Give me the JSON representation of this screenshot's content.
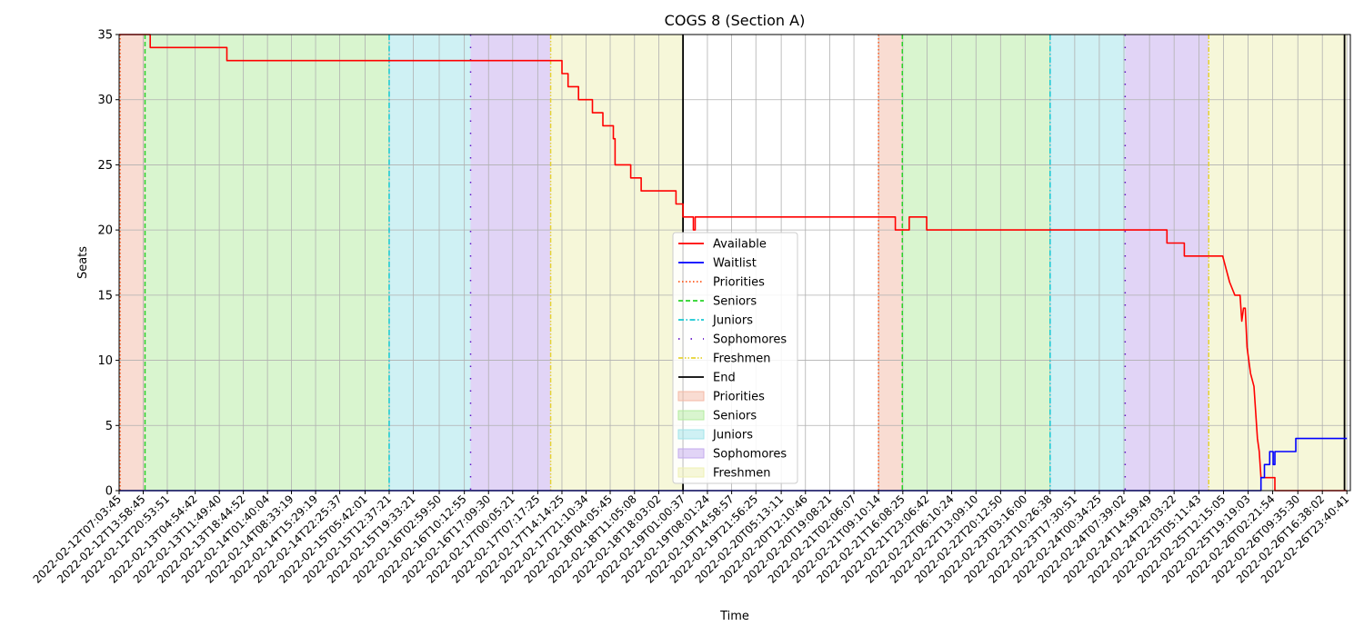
{
  "chart_data": {
    "type": "line",
    "title": "COGS 8 (Section A)",
    "xlabel": "Time",
    "ylabel": "Seats",
    "ylim": [
      0,
      35
    ],
    "yticks": [
      0,
      5,
      10,
      15,
      20,
      25,
      30,
      35
    ],
    "xlim": [
      "2022-02-12T07:03:45",
      "2022-02-27T00:40:41"
    ],
    "grid": true,
    "legend_position": "lower center",
    "xticks": [
      "2022-02-12T07:03:45",
      "2022-02-12T13:58:45",
      "2022-02-12T20:53:51",
      "2022-02-13T04:54:42",
      "2022-02-13T11:49:40",
      "2022-02-13T18:44:52",
      "2022-02-14T01:40:04",
      "2022-02-14T08:33:19",
      "2022-02-14T15:29:19",
      "2022-02-14T22:25:37",
      "2022-02-15T05:42:01",
      "2022-02-15T12:37:21",
      "2022-02-15T19:33:21",
      "2022-02-16T02:59:50",
      "2022-02-16T10:12:55",
      "2022-02-16T17:09:30",
      "2022-02-17T00:05:21",
      "2022-02-17T07:17:25",
      "2022-02-17T14:14:25",
      "2022-02-17T21:10:34",
      "2022-02-18T04:05:45",
      "2022-02-18T11:05:08",
      "2022-02-18T18:03:02",
      "2022-02-19T01:00:37",
      "2022-02-19T08:01:24",
      "2022-02-19T14:58:57",
      "2022-02-19T21:56:25",
      "2022-02-20T05:13:11",
      "2022-02-20T12:10:46",
      "2022-02-20T19:08:21",
      "2022-02-21T02:06:07",
      "2022-02-21T09:10:14",
      "2022-02-21T16:08:25",
      "2022-02-21T23:06:42",
      "2022-02-22T06:10:24",
      "2022-02-22T13:09:10",
      "2022-02-22T20:12:50",
      "2022-02-23T03:16:00",
      "2022-02-23T10:26:38",
      "2022-02-23T17:30:51",
      "2022-02-24T00:34:25",
      "2022-02-24T07:39:02",
      "2022-02-24T14:59:49",
      "2022-02-24T22:03:22",
      "2022-02-25T05:11:43",
      "2022-02-25T12:15:05",
      "2022-02-25T19:19:03",
      "2022-02-26T02:21:54",
      "2022-02-26T09:35:30",
      "2022-02-26T16:38:02",
      "2022-02-26T23:40:41"
    ],
    "periods": [
      {
        "name": "Priorities",
        "color": "#f4b9a6",
        "intervals": [
          [
            "2022-02-12T07:03:45",
            "2022-02-12T14:30:00"
          ],
          [
            "2022-02-21T09:10:14",
            "2022-02-21T16:00:00"
          ]
        ]
      },
      {
        "name": "Seniors",
        "color": "#b3ec9f",
        "intervals": [
          [
            "2022-02-12T14:30:00",
            "2022-02-15T12:37:21"
          ],
          [
            "2022-02-21T16:00:00",
            "2022-02-23T10:26:38"
          ]
        ]
      },
      {
        "name": "Juniors",
        "color": "#a0e4ea",
        "intervals": [
          [
            "2022-02-15T12:37:21",
            "2022-02-16T12:00:00"
          ],
          [
            "2022-02-23T10:26:38",
            "2022-02-24T08:00:00"
          ]
        ]
      },
      {
        "name": "Sophomores",
        "color": "#c3aaed",
        "intervals": [
          [
            "2022-02-16T12:00:00",
            "2022-02-17T11:00:00"
          ],
          [
            "2022-02-24T08:00:00",
            "2022-02-25T08:00:00"
          ]
        ]
      },
      {
        "name": "Freshmen",
        "color": "#eef0b3",
        "intervals": [
          [
            "2022-02-17T11:00:00",
            "2022-02-19T01:00:37"
          ],
          [
            "2022-02-25T08:00:00",
            "2022-02-26T23:40:41"
          ]
        ]
      }
    ],
    "markers": [
      {
        "name": "Priorities",
        "color": "#ff5a1e",
        "style": "dotted",
        "times": [
          "2022-02-12T07:20:00",
          "2022-02-21T09:10:14"
        ]
      },
      {
        "name": "Seniors",
        "color": "#28d228",
        "style": "dashed",
        "times": [
          "2022-02-12T14:30:00",
          "2022-02-21T16:00:00"
        ]
      },
      {
        "name": "Juniors",
        "color": "#14c8d2",
        "style": "dashdot",
        "times": [
          "2022-02-15T12:37:21",
          "2022-02-23T10:26:38"
        ]
      },
      {
        "name": "Sophomores",
        "color": "#6414c8",
        "style": "loosedashdot",
        "times": [
          "2022-02-16T12:00:00",
          "2022-02-24T08:00:00"
        ]
      },
      {
        "name": "Freshmen",
        "color": "#e6d232",
        "style": "dashdotdot",
        "times": [
          "2022-02-17T11:00:00",
          "2022-02-25T08:00:00"
        ]
      },
      {
        "name": "End",
        "color": "#000000",
        "style": "solid",
        "times": [
          "2022-02-19T01:00:37",
          "2022-02-26T23:00:00"
        ]
      }
    ],
    "series": [
      {
        "name": "Available",
        "color": "#ff0000",
        "points": [
          [
            "2022-02-12T07:03:45",
            35
          ],
          [
            "2022-02-12T16:00:00",
            35
          ],
          [
            "2022-02-12T16:00:00",
            34
          ],
          [
            "2022-02-13T14:00:00",
            34
          ],
          [
            "2022-02-13T14:00:00",
            33
          ],
          [
            "2022-02-17T14:14:25",
            33
          ],
          [
            "2022-02-17T14:14:25",
            32
          ],
          [
            "2022-02-17T16:00:00",
            32
          ],
          [
            "2022-02-17T16:00:00",
            31
          ],
          [
            "2022-02-17T19:00:00",
            31
          ],
          [
            "2022-02-17T19:00:00",
            30
          ],
          [
            "2022-02-17T23:00:00",
            30
          ],
          [
            "2022-02-17T23:00:00",
            29
          ],
          [
            "2022-02-18T02:00:00",
            29
          ],
          [
            "2022-02-18T02:00:00",
            28
          ],
          [
            "2022-02-18T05:00:00",
            28
          ],
          [
            "2022-02-18T05:00:00",
            27
          ],
          [
            "2022-02-18T05:30:00",
            27
          ],
          [
            "2022-02-18T05:30:00",
            25
          ],
          [
            "2022-02-18T10:00:00",
            25
          ],
          [
            "2022-02-18T10:00:00",
            24
          ],
          [
            "2022-02-18T13:00:00",
            24
          ],
          [
            "2022-02-18T13:00:00",
            23
          ],
          [
            "2022-02-18T23:00:00",
            23
          ],
          [
            "2022-02-18T23:00:00",
            22
          ],
          [
            "2022-02-19T01:00:00",
            22
          ],
          [
            "2022-02-19T01:00:00",
            21
          ],
          [
            "2022-02-19T04:00:00",
            21
          ],
          [
            "2022-02-19T04:00:00",
            20
          ],
          [
            "2022-02-19T04:30:00",
            20
          ],
          [
            "2022-02-19T04:30:00",
            21
          ],
          [
            "2022-02-21T14:00:00",
            21
          ],
          [
            "2022-02-21T14:00:00",
            20
          ],
          [
            "2022-02-21T18:00:00",
            20
          ],
          [
            "2022-02-21T18:00:00",
            21
          ],
          [
            "2022-02-21T23:00:00",
            21
          ],
          [
            "2022-02-21T23:00:00",
            20
          ],
          [
            "2022-02-24T20:00:00",
            20
          ],
          [
            "2022-02-24T20:00:00",
            19
          ],
          [
            "2022-02-25T01:00:00",
            19
          ],
          [
            "2022-02-25T01:00:00",
            18
          ],
          [
            "2022-02-25T12:00:00",
            18
          ],
          [
            "2022-02-25T13:00:00",
            17
          ],
          [
            "2022-02-25T14:00:00",
            16
          ],
          [
            "2022-02-25T15:30:00",
            15
          ],
          [
            "2022-02-25T17:00:00",
            15
          ],
          [
            "2022-02-25T17:30:00",
            13
          ],
          [
            "2022-02-25T18:00:00",
            14
          ],
          [
            "2022-02-25T18:30:00",
            14
          ],
          [
            "2022-02-25T19:00:00",
            11
          ],
          [
            "2022-02-25T19:30:00",
            10
          ],
          [
            "2022-02-25T20:00:00",
            9
          ],
          [
            "2022-02-25T21:00:00",
            8
          ],
          [
            "2022-02-25T21:30:00",
            6
          ],
          [
            "2022-02-25T22:00:00",
            4
          ],
          [
            "2022-02-25T22:30:00",
            3
          ],
          [
            "2022-02-25T23:00:00",
            1
          ],
          [
            "2022-02-26T03:00:00",
            1
          ],
          [
            "2022-02-26T03:00:00",
            0
          ],
          [
            "2022-02-26T23:40:41",
            0
          ]
        ]
      },
      {
        "name": "Waitlist",
        "color": "#0000ff",
        "points": [
          [
            "2022-02-12T07:03:45",
            0
          ],
          [
            "2022-02-25T23:00:00",
            0
          ],
          [
            "2022-02-25T23:00:00",
            1
          ],
          [
            "2022-02-26T00:00:00",
            1
          ],
          [
            "2022-02-26T00:00:00",
            2
          ],
          [
            "2022-02-26T01:30:00",
            2
          ],
          [
            "2022-02-26T01:30:00",
            3
          ],
          [
            "2022-02-26T02:30:00",
            3
          ],
          [
            "2022-02-26T02:30:00",
            2
          ],
          [
            "2022-02-26T03:00:00",
            2
          ],
          [
            "2022-02-26T03:00:00",
            3
          ],
          [
            "2022-02-26T09:00:00",
            3
          ],
          [
            "2022-02-26T09:00:00",
            4
          ],
          [
            "2022-02-26T23:40:41",
            4
          ]
        ]
      }
    ]
  }
}
